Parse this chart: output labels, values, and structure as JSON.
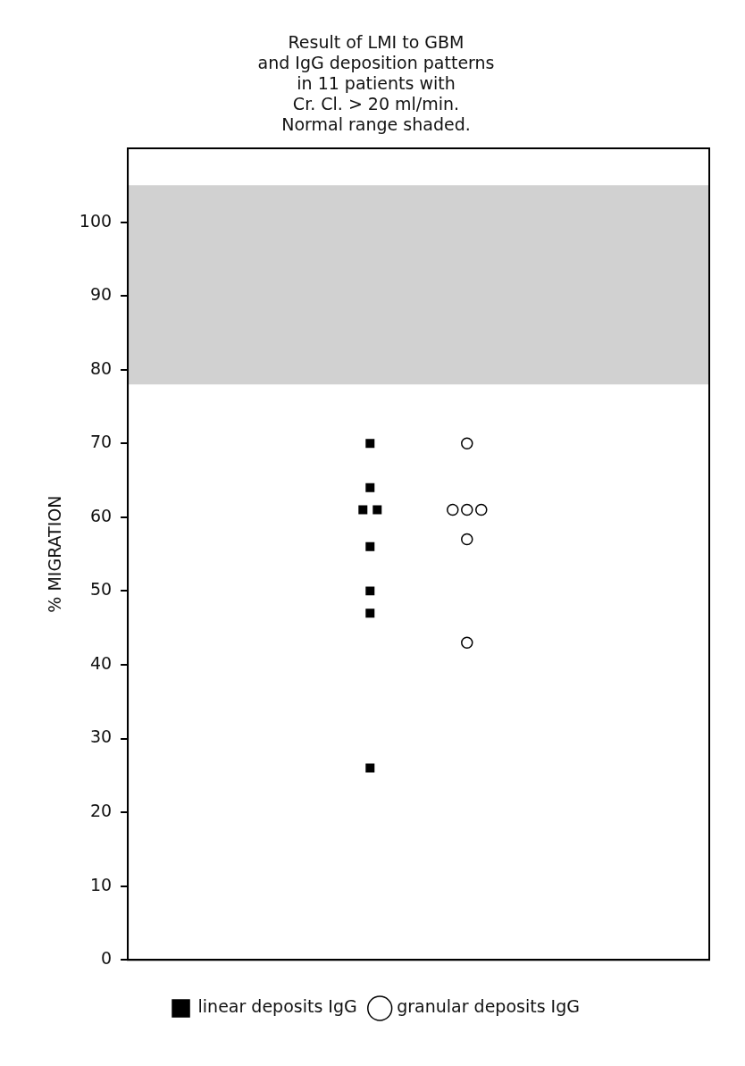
{
  "chart_data": {
    "type": "scatter",
    "title": "Result of LMI to GBM\nand IgG deposition patterns\nin 11 patients with\nCr. Cl. > 20 ml/min.",
    "subtitle": "Normal range shaded.",
    "ylabel": "% MIGRATION",
    "categories": [
      null,
      null,
      null,
      null,
      null,
      null
    ],
    "ylim": [
      0,
      110
    ],
    "yticks": [
      0,
      10,
      20,
      30,
      40,
      50,
      60,
      70,
      80,
      90,
      100
    ],
    "grid": false,
    "legend": "bottom",
    "bands": [
      {
        "axis": "y",
        "from": 78,
        "to": 105,
        "color": "#000000"
      }
    ],
    "series": [
      {
        "name": "linear deposits IgG",
        "color": "#000000",
        "marker": "square",
        "values": [
          null,
          null,
          70,
          null,
          null,
          null
        ]
      },
      {
        "color": "#000000",
        "marker": "square",
        "values": [
          null,
          null,
          64,
          null,
          null,
          null
        ]
      },
      {
        "color": "#000000",
        "marker": "square",
        "values": [
          null,
          null,
          61,
          null,
          null,
          null
        ]
      },
      {
        "color": "#000000",
        "marker": "square",
        "values": [
          null,
          null,
          61,
          null,
          null,
          null
        ]
      },
      {
        "color": "#000000",
        "marker": "square",
        "values": [
          null,
          null,
          56,
          null,
          null,
          null
        ]
      },
      {
        "color": "#000000",
        "marker": "square",
        "values": [
          null,
          null,
          50,
          null,
          null,
          null
        ]
      },
      {
        "color": "#000000",
        "marker": "square",
        "values": [
          null,
          null,
          47,
          null,
          null,
          null
        ]
      },
      {
        "color": "#000000",
        "marker": "square",
        "values": [
          null,
          null,
          26,
          null,
          null,
          null
        ]
      },
      {
        "name": "granular deposits IgG",
        "color": "#000000",
        "marker": "circle",
        "values": [
          null,
          null,
          null,
          70,
          null,
          null
        ]
      },
      {
        "color": "#000000",
        "marker": "circle",
        "values": [
          null,
          null,
          null,
          61,
          null,
          null
        ]
      },
      {
        "color": "#000000",
        "marker": "circle",
        "values": [
          null,
          null,
          null,
          61,
          null,
          null
        ]
      },
      {
        "color": "#000000",
        "marker": "circle",
        "values": [
          null,
          null,
          null,
          61,
          null,
          null
        ]
      },
      {
        "color": "#000000",
        "marker": "circle",
        "values": [
          null,
          null,
          null,
          57,
          null,
          null
        ]
      },
      {
        "color": "#000000",
        "marker": "circle",
        "values": [
          null,
          null,
          null,
          43,
          null,
          null
        ]
      }
    ]
  }
}
